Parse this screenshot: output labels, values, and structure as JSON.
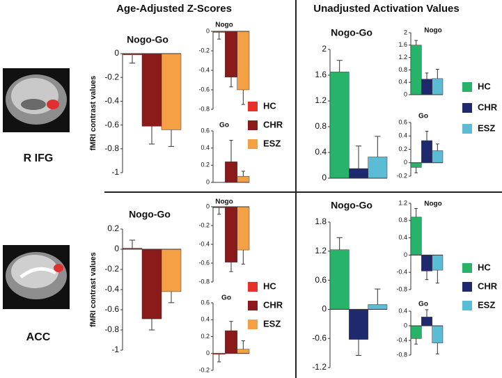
{
  "headers": [
    "Age-Adjusted Z-Scores",
    "Unadjusted Activation Values"
  ],
  "regions": [
    "R IFG",
    "ACC"
  ],
  "chart_data": [
    {
      "type": "bar",
      "title": "Nogo-Go",
      "ylabel": "fMRI contrast values",
      "categories": [
        "HC",
        "CHR",
        "ESZ"
      ],
      "values": [
        -0.01,
        -0.61,
        -0.64
      ],
      "errors": [
        0.07,
        0.15,
        0.14
      ],
      "colors": [
        "#e8302a",
        "#8b1a1a",
        "#f5a045"
      ],
      "ylim": [
        -1,
        0
      ],
      "yticks": [
        0,
        -0.2,
        -0.4,
        -0.6,
        -0.8,
        -1
      ]
    },
    {
      "type": "bar",
      "title": "Nogo",
      "categories": [
        "HC",
        "CHR",
        "ESZ"
      ],
      "values": [
        -0.01,
        -0.47,
        -0.6
      ],
      "errors": [
        0.07,
        0.1,
        0.15
      ],
      "colors": [
        "#e8302a",
        "#8b1a1a",
        "#f5a045"
      ],
      "ylim": [
        -0.8,
        0
      ],
      "yticks": [
        0,
        -0.2,
        -0.4,
        -0.6,
        -0.8
      ]
    },
    {
      "type": "bar",
      "title": "Go",
      "categories": [
        "HC",
        "CHR",
        "ESZ"
      ],
      "values": [
        0,
        0.24,
        0.07
      ],
      "errors": [
        0,
        0.25,
        0.06
      ],
      "colors": [
        "#e8302a",
        "#8b1a1a",
        "#f5a045"
      ],
      "ylim": [
        0,
        0.6
      ],
      "yticks": [
        0,
        0.2,
        0.4,
        0.6
      ]
    },
    {
      "type": "bar",
      "title": "Nogo-Go",
      "categories": [
        "HC",
        "CHR",
        "ESZ"
      ],
      "values": [
        1.65,
        0.15,
        0.33
      ],
      "errors": [
        0.18,
        0.35,
        0.32
      ],
      "colors": [
        "#27b36a",
        "#1f2a6e",
        "#5bbcd6"
      ],
      "ylim": [
        0,
        2
      ],
      "yticks": [
        0,
        0.4,
        0.8,
        1.2,
        1.6,
        2
      ]
    },
    {
      "type": "bar",
      "title": "Nogo",
      "categories": [
        "HC",
        "CHR",
        "ESZ"
      ],
      "values": [
        1.6,
        0.5,
        0.52
      ],
      "errors": [
        0.15,
        0.2,
        0.3
      ],
      "colors": [
        "#27b36a",
        "#1f2a6e",
        "#5bbcd6"
      ],
      "ylim": [
        0,
        2
      ],
      "yticks": [
        0,
        0.4,
        0.8,
        1.2,
        1.6,
        2
      ]
    },
    {
      "type": "bar",
      "title": "Go",
      "categories": [
        "HC",
        "CHR",
        "ESZ"
      ],
      "values": [
        -0.07,
        0.33,
        0.18
      ],
      "errors": [
        0.08,
        0.14,
        0.1
      ],
      "colors": [
        "#27b36a",
        "#1f2a6e",
        "#5bbcd6"
      ],
      "ylim": [
        -0.2,
        0.6
      ],
      "yticks": [
        -0.2,
        0,
        0.2,
        0.4,
        0.6
      ]
    },
    {
      "type": "bar",
      "title": "Nogo-Go",
      "ylabel": "fMRI contrast values",
      "categories": [
        "HC",
        "CHR",
        "ESZ"
      ],
      "values": [
        0.01,
        -0.69,
        -0.42
      ],
      "errors": [
        0.08,
        0.11,
        0.11
      ],
      "colors": [
        "#e8302a",
        "#8b1a1a",
        "#f5a045"
      ],
      "ylim": [
        -1,
        0.2
      ],
      "yticks": [
        0.2,
        0,
        -0.2,
        -0.4,
        -0.6,
        -0.8,
        -1
      ]
    },
    {
      "type": "bar",
      "title": "Nogo",
      "categories": [
        "HC",
        "CHR",
        "ESZ"
      ],
      "values": [
        -0.01,
        -0.59,
        -0.46
      ],
      "errors": [
        0.07,
        0.1,
        0.15
      ],
      "colors": [
        "#e8302a",
        "#8b1a1a",
        "#f5a045"
      ],
      "ylim": [
        -0.8,
        0
      ],
      "yticks": [
        0,
        -0.2,
        -0.4,
        -0.6,
        -0.8
      ]
    },
    {
      "type": "bar",
      "title": "Go",
      "categories": [
        "HC",
        "CHR",
        "ESZ"
      ],
      "values": [
        -0.01,
        0.27,
        0.05
      ],
      "errors": [
        0.09,
        0.11,
        0.1
      ],
      "colors": [
        "#e8302a",
        "#8b1a1a",
        "#f5a045"
      ],
      "ylim": [
        -0.2,
        0.6
      ],
      "yticks": [
        -0.2,
        0,
        0.2,
        0.4,
        0.6
      ]
    },
    {
      "type": "bar",
      "title": "Nogo-Go",
      "categories": [
        "HC",
        "CHR",
        "ESZ"
      ],
      "values": [
        1.23,
        -0.62,
        0.1
      ],
      "errors": [
        0.25,
        0.33,
        0.32
      ],
      "colors": [
        "#27b36a",
        "#1f2a6e",
        "#5bbcd6"
      ],
      "ylim": [
        -1.2,
        1.8
      ],
      "yticks": [
        1.8,
        1.2,
        0.6,
        0,
        -0.6,
        -1.2
      ]
    },
    {
      "type": "bar",
      "title": "Nogo",
      "categories": [
        "HC",
        "CHR",
        "ESZ"
      ],
      "values": [
        0.88,
        -0.37,
        -0.35
      ],
      "errors": [
        0.2,
        0.2,
        0.3
      ],
      "colors": [
        "#27b36a",
        "#1f2a6e",
        "#5bbcd6"
      ],
      "ylim": [
        -0.8,
        1.2
      ],
      "yticks": [
        1.2,
        0.8,
        0.4,
        0,
        -0.4,
        -0.8
      ]
    },
    {
      "type": "bar",
      "title": "Go",
      "categories": [
        "HC",
        "CHR",
        "ESZ"
      ],
      "values": [
        -0.35,
        0.24,
        -0.47
      ],
      "errors": [
        0.15,
        0.2,
        0.3
      ],
      "colors": [
        "#27b36a",
        "#1f2a6e",
        "#5bbcd6"
      ],
      "ylim": [
        -0.8,
        0.4
      ],
      "yticks": [
        0.4,
        0,
        -0.4,
        -0.8
      ]
    }
  ]
}
